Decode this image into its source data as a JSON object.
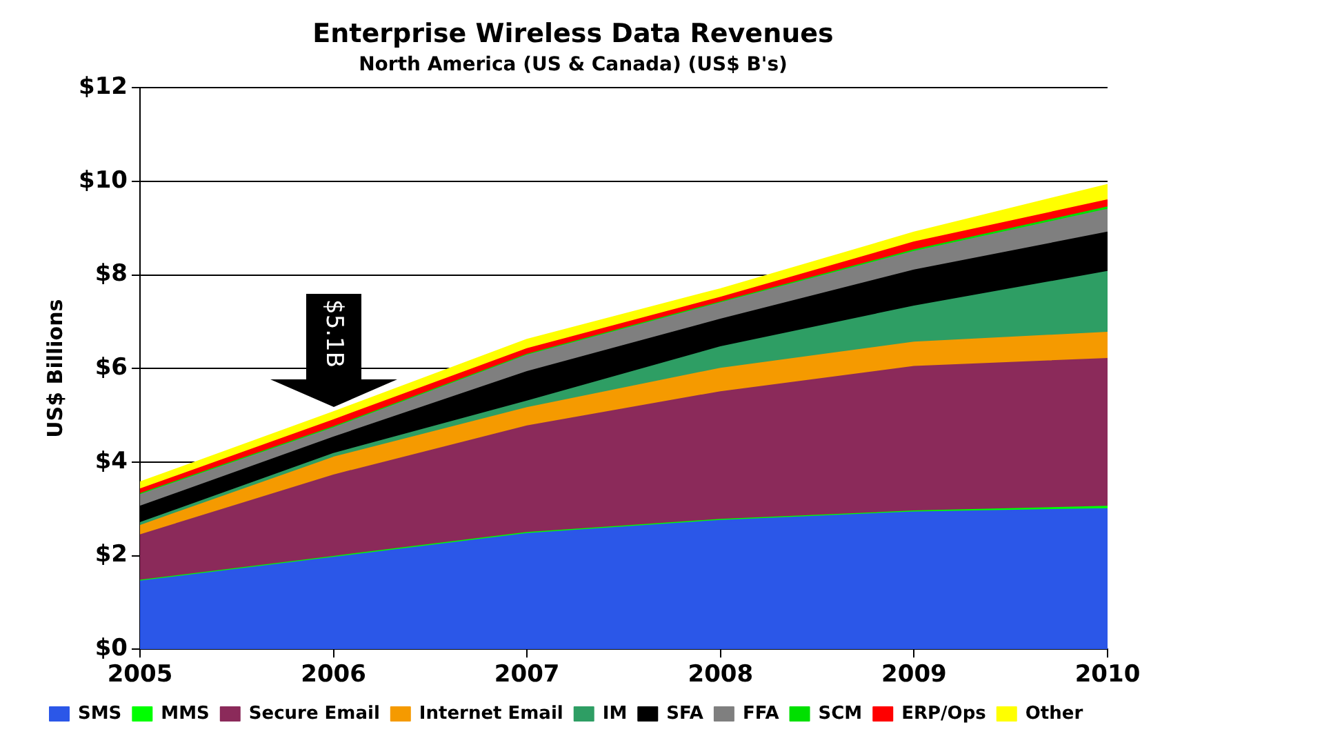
{
  "chart_data": {
    "type": "area",
    "stacked": true,
    "title": "Enterprise Wireless Data Revenues",
    "subtitle": "North America (US & Canada) (US$ B's)",
    "ylabel": "US$ Billions",
    "x": [
      2005,
      2006,
      2007,
      2008,
      2009,
      2010
    ],
    "xlim": [
      2005,
      2010
    ],
    "xticks": [
      2005,
      2006,
      2007,
      2008,
      2009,
      2010
    ],
    "ylim": [
      0,
      12
    ],
    "yticks": [
      {
        "value": 0,
        "label": "$0"
      },
      {
        "value": 2,
        "label": "$2"
      },
      {
        "value": 4,
        "label": "$4"
      },
      {
        "value": 6,
        "label": "$6"
      },
      {
        "value": 8,
        "label": "$8"
      },
      {
        "value": 10,
        "label": "$10"
      },
      {
        "value": 12,
        "label": "$12"
      }
    ],
    "grid": "y",
    "legend": "bottom",
    "annotations": [
      {
        "text": "$5.1B",
        "x": 2006,
        "y": 5.07
      }
    ],
    "series": [
      {
        "name": "SMS",
        "color": "#2b57e8",
        "values": [
          1.45,
          1.96,
          2.47,
          2.75,
          2.93,
          3.0
        ]
      },
      {
        "name": "MMS",
        "color": "#00ff00",
        "values": [
          0.02,
          0.02,
          0.02,
          0.02,
          0.02,
          0.05
        ]
      },
      {
        "name": "Secure Email",
        "color": "#8b2a5a",
        "values": [
          0.97,
          1.74,
          2.28,
          2.73,
          3.09,
          3.16
        ]
      },
      {
        "name": "Internet Email",
        "color": "#f59a00",
        "values": [
          0.2,
          0.38,
          0.39,
          0.5,
          0.52,
          0.56
        ]
      },
      {
        "name": "IM",
        "color": "#2e9e64",
        "values": [
          0.06,
          0.08,
          0.14,
          0.46,
          0.77,
          1.3
        ]
      },
      {
        "name": "SFA",
        "color": "#000000",
        "values": [
          0.35,
          0.35,
          0.63,
          0.59,
          0.77,
          0.84
        ]
      },
      {
        "name": "FFA",
        "color": "#7f7f7f",
        "values": [
          0.25,
          0.2,
          0.35,
          0.35,
          0.4,
          0.49
        ]
      },
      {
        "name": "SCM",
        "color": "#00e000",
        "values": [
          0.02,
          0.02,
          0.02,
          0.02,
          0.03,
          0.05
        ]
      },
      {
        "name": "ERP/Ops",
        "color": "#ff0000",
        "values": [
          0.1,
          0.15,
          0.12,
          0.1,
          0.17,
          0.15
        ]
      },
      {
        "name": "Other",
        "color": "#ffff00",
        "values": [
          0.15,
          0.17,
          0.2,
          0.18,
          0.21,
          0.33
        ]
      }
    ]
  }
}
